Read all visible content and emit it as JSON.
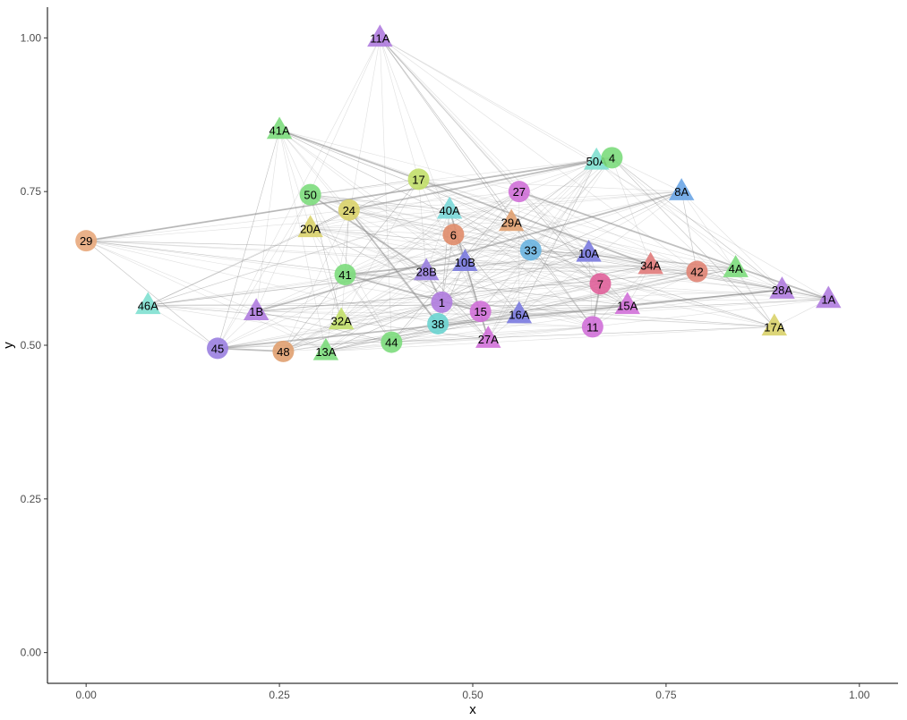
{
  "chart_data": {
    "type": "scatter",
    "xlabel": "x",
    "ylabel": "y",
    "xlim": [
      -0.05,
      1.05
    ],
    "ylim": [
      -0.05,
      1.05
    ],
    "x_ticks": [
      "0.00",
      "0.25",
      "0.50",
      "0.75",
      "1.00"
    ],
    "y_ticks": [
      "0.00",
      "0.25",
      "0.50",
      "0.75",
      "1.00"
    ],
    "grid": false,
    "legend": "none",
    "shapes": {
      "numbered_nodes": "circle",
      "lettered_nodes": "triangle"
    },
    "nodes": [
      {
        "label": "11A",
        "x": 0.38,
        "y": 1.0,
        "shape": "triangle",
        "color": "#b07cdf"
      },
      {
        "label": "41A",
        "x": 0.25,
        "y": 0.85,
        "shape": "triangle",
        "color": "#7cdc7c"
      },
      {
        "label": "50A",
        "x": 0.66,
        "y": 0.8,
        "shape": "triangle",
        "color": "#7fe0d0"
      },
      {
        "label": "4",
        "x": 0.68,
        "y": 0.805,
        "shape": "circle",
        "color": "#7cdc7c"
      },
      {
        "label": "17",
        "x": 0.43,
        "y": 0.77,
        "shape": "circle",
        "color": "#c2df6a"
      },
      {
        "label": "50",
        "x": 0.29,
        "y": 0.745,
        "shape": "circle",
        "color": "#7cdc7c"
      },
      {
        "label": "27",
        "x": 0.56,
        "y": 0.75,
        "shape": "circle",
        "color": "#d070d8"
      },
      {
        "label": "8A",
        "x": 0.77,
        "y": 0.75,
        "shape": "triangle",
        "color": "#6aa5e6"
      },
      {
        "label": "24",
        "x": 0.34,
        "y": 0.72,
        "shape": "circle",
        "color": "#d9d16a"
      },
      {
        "label": "40A",
        "x": 0.47,
        "y": 0.72,
        "shape": "triangle",
        "color": "#7ad8d8"
      },
      {
        "label": "20A",
        "x": 0.29,
        "y": 0.69,
        "shape": "triangle",
        "color": "#d9d16a"
      },
      {
        "label": "29A",
        "x": 0.55,
        "y": 0.7,
        "shape": "triangle",
        "color": "#e0a070"
      },
      {
        "label": "29",
        "x": 0.0,
        "y": 0.67,
        "shape": "circle",
        "color": "#e8a87c"
      },
      {
        "label": "6",
        "x": 0.475,
        "y": 0.68,
        "shape": "circle",
        "color": "#e08c6a"
      },
      {
        "label": "33",
        "x": 0.575,
        "y": 0.655,
        "shape": "circle",
        "color": "#6ab4e0"
      },
      {
        "label": "10A",
        "x": 0.65,
        "y": 0.65,
        "shape": "triangle",
        "color": "#7a7adf"
      },
      {
        "label": "34A",
        "x": 0.73,
        "y": 0.63,
        "shape": "triangle",
        "color": "#e07a7a"
      },
      {
        "label": "42",
        "x": 0.79,
        "y": 0.62,
        "shape": "circle",
        "color": "#e08474"
      },
      {
        "label": "4A",
        "x": 0.84,
        "y": 0.625,
        "shape": "triangle",
        "color": "#7cdc7c"
      },
      {
        "label": "10B",
        "x": 0.49,
        "y": 0.635,
        "shape": "triangle",
        "color": "#7a7adf"
      },
      {
        "label": "28B",
        "x": 0.44,
        "y": 0.62,
        "shape": "triangle",
        "color": "#9a80e0"
      },
      {
        "label": "41",
        "x": 0.335,
        "y": 0.615,
        "shape": "circle",
        "color": "#7cdc7c"
      },
      {
        "label": "7",
        "x": 0.665,
        "y": 0.6,
        "shape": "circle",
        "color": "#e0609a"
      },
      {
        "label": "28A",
        "x": 0.9,
        "y": 0.59,
        "shape": "triangle",
        "color": "#b07cdf"
      },
      {
        "label": "1A",
        "x": 0.96,
        "y": 0.575,
        "shape": "triangle",
        "color": "#b07cdf"
      },
      {
        "label": "1",
        "x": 0.46,
        "y": 0.57,
        "shape": "circle",
        "color": "#b07cdf"
      },
      {
        "label": "15A",
        "x": 0.7,
        "y": 0.565,
        "shape": "triangle",
        "color": "#d070d8"
      },
      {
        "label": "46A",
        "x": 0.08,
        "y": 0.565,
        "shape": "triangle",
        "color": "#7fe0d0"
      },
      {
        "label": "1B",
        "x": 0.22,
        "y": 0.555,
        "shape": "triangle",
        "color": "#b07cdf"
      },
      {
        "label": "15",
        "x": 0.51,
        "y": 0.555,
        "shape": "circle",
        "color": "#d070d8"
      },
      {
        "label": "16A",
        "x": 0.56,
        "y": 0.55,
        "shape": "triangle",
        "color": "#7a7adf"
      },
      {
        "label": "32A",
        "x": 0.33,
        "y": 0.54,
        "shape": "triangle",
        "color": "#c2df6a"
      },
      {
        "label": "38",
        "x": 0.455,
        "y": 0.535,
        "shape": "circle",
        "color": "#6ad4d0"
      },
      {
        "label": "11",
        "x": 0.655,
        "y": 0.53,
        "shape": "circle",
        "color": "#d070d8"
      },
      {
        "label": "17A",
        "x": 0.89,
        "y": 0.53,
        "shape": "triangle",
        "color": "#d9d16a"
      },
      {
        "label": "44",
        "x": 0.395,
        "y": 0.505,
        "shape": "circle",
        "color": "#7cdc7c"
      },
      {
        "label": "27A",
        "x": 0.52,
        "y": 0.51,
        "shape": "triangle",
        "color": "#d070d8"
      },
      {
        "label": "45",
        "x": 0.17,
        "y": 0.495,
        "shape": "circle",
        "color": "#9a80e0"
      },
      {
        "label": "48",
        "x": 0.255,
        "y": 0.49,
        "shape": "circle",
        "color": "#e0a070"
      },
      {
        "label": "13A",
        "x": 0.31,
        "y": 0.49,
        "shape": "triangle",
        "color": "#7cdc7c"
      }
    ]
  }
}
